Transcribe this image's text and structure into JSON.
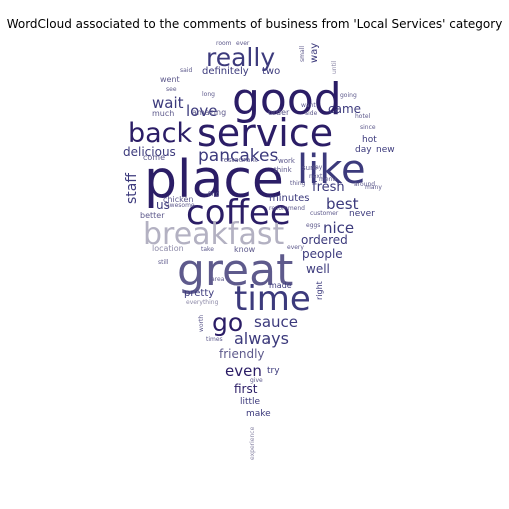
{
  "chart_data": {
    "type": "wordcloud",
    "title": "WordCloud associated to the comments of business from 'Local Services' category",
    "shape": "map-pin",
    "palette": [
      "#2b1d66",
      "#3c3a7c",
      "#5e5a8c",
      "#8d8aa8",
      "#b3b1c2"
    ],
    "words": [
      {
        "text": "place",
        "weight": 1.0
      },
      {
        "text": "good",
        "weight": 0.98
      },
      {
        "text": "great",
        "weight": 0.95
      },
      {
        "text": "service",
        "weight": 0.92
      },
      {
        "text": "like",
        "weight": 0.9
      },
      {
        "text": "coffee",
        "weight": 0.85
      },
      {
        "text": "time",
        "weight": 0.8
      },
      {
        "text": "breakfast",
        "weight": 0.78
      },
      {
        "text": "back",
        "weight": 0.72
      },
      {
        "text": "really",
        "weight": 0.68
      },
      {
        "text": "go",
        "weight": 0.62
      },
      {
        "text": "pancakes",
        "weight": 0.5
      },
      {
        "text": "always",
        "weight": 0.48
      },
      {
        "text": "love",
        "weight": 0.45
      },
      {
        "text": "wait",
        "weight": 0.45
      },
      {
        "text": "sauce",
        "weight": 0.45
      },
      {
        "text": "even",
        "weight": 0.45
      },
      {
        "text": "best",
        "weight": 0.45
      },
      {
        "text": "nice",
        "weight": 0.45
      },
      {
        "text": "delicious",
        "weight": 0.4
      },
      {
        "text": "staff",
        "weight": 0.4
      },
      {
        "text": "fresh",
        "weight": 0.38
      },
      {
        "text": "came",
        "weight": 0.36
      },
      {
        "text": "ordered",
        "weight": 0.36
      },
      {
        "text": "people",
        "weight": 0.36
      },
      {
        "text": "well",
        "weight": 0.36
      },
      {
        "text": "friendly",
        "weight": 0.36
      },
      {
        "text": "first",
        "weight": 0.34
      },
      {
        "text": "us",
        "weight": 0.34
      },
      {
        "text": "pretty",
        "weight": 0.3
      },
      {
        "text": "definitely",
        "weight": 0.28
      },
      {
        "text": "two",
        "weight": 0.28
      },
      {
        "text": "way",
        "weight": 0.26
      },
      {
        "text": "minutes",
        "weight": 0.28
      },
      {
        "text": "hot",
        "weight": 0.26
      },
      {
        "text": "day",
        "weight": 0.26
      },
      {
        "text": "new",
        "weight": 0.26
      },
      {
        "text": "never",
        "weight": 0.26
      },
      {
        "text": "little",
        "weight": 0.26
      },
      {
        "text": "try",
        "weight": 0.26
      },
      {
        "text": "make",
        "weight": 0.24
      },
      {
        "text": "better",
        "weight": 0.24
      },
      {
        "text": "know",
        "weight": 0.24
      },
      {
        "text": "made",
        "weight": 0.24
      },
      {
        "text": "right",
        "weight": 0.22
      },
      {
        "text": "location",
        "weight": 0.24
      },
      {
        "text": "chicken",
        "weight": 0.24
      },
      {
        "text": "come",
        "weight": 0.22
      },
      {
        "text": "much",
        "weight": 0.22
      },
      {
        "text": "amazing",
        "weight": 0.22
      },
      {
        "text": "order",
        "weight": 0.22
      },
      {
        "text": "went",
        "weight": 0.2
      },
      {
        "text": "restaurant",
        "weight": 0.18
      },
      {
        "text": "work",
        "weight": 0.16
      },
      {
        "text": "think",
        "weight": 0.16
      },
      {
        "text": "sure",
        "weight": 0.16
      },
      {
        "text": "room",
        "weight": 0.14
      },
      {
        "text": "ever",
        "weight": 0.14
      },
      {
        "text": "said",
        "weight": 0.14
      },
      {
        "text": "see",
        "weight": 0.14
      },
      {
        "text": "long",
        "weight": 0.14
      },
      {
        "text": "small",
        "weight": 0.12
      },
      {
        "text": "until",
        "weight": 0.12
      },
      {
        "text": "going",
        "weight": 0.14
      },
      {
        "text": "want",
        "weight": 0.14
      },
      {
        "text": "side",
        "weight": 0.14
      },
      {
        "text": "hotel",
        "weight": 0.14
      },
      {
        "text": "since",
        "weight": 0.14
      },
      {
        "text": "say",
        "weight": 0.14
      },
      {
        "text": "next",
        "weight": 0.14
      },
      {
        "text": "menu",
        "weight": 0.14
      },
      {
        "text": "around",
        "weight": 0.14
      },
      {
        "text": "many",
        "weight": 0.14
      },
      {
        "text": "thing",
        "weight": 0.14
      },
      {
        "text": "recommend",
        "weight": 0.14
      },
      {
        "text": "customer",
        "weight": 0.14
      },
      {
        "text": "eggs",
        "weight": 0.14
      },
      {
        "text": "find",
        "weight": 0.14
      },
      {
        "text": "awesome",
        "weight": 0.14
      },
      {
        "text": "every",
        "weight": 0.14
      },
      {
        "text": "take",
        "weight": 0.14
      },
      {
        "text": "still",
        "weight": 0.14
      },
      {
        "text": "area",
        "weight": 0.14
      },
      {
        "text": "everything",
        "weight": 0.14
      },
      {
        "text": "worth",
        "weight": 0.14
      },
      {
        "text": "times",
        "weight": 0.14
      },
      {
        "text": "ca",
        "weight": 0.14
      },
      {
        "text": "give",
        "weight": 0.14
      },
      {
        "text": "experience",
        "weight": 0.14
      }
    ]
  }
}
